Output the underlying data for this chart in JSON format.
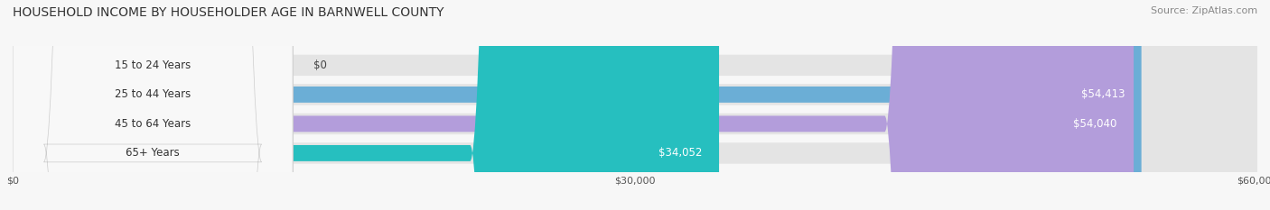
{
  "title": "HOUSEHOLD INCOME BY HOUSEHOLDER AGE IN BARNWELL COUNTY",
  "source": "Source: ZipAtlas.com",
  "categories": [
    "15 to 24 Years",
    "25 to 44 Years",
    "45 to 64 Years",
    "65+ Years"
  ],
  "values": [
    0,
    54413,
    54040,
    34052
  ],
  "bar_colors": [
    "#f4a0a0",
    "#6baed6",
    "#b39ddb",
    "#26bfbf"
  ],
  "bg_color": "#f0f0f0",
  "fig_bg_color": "#f7f7f7",
  "xlim": [
    0,
    60000
  ],
  "xticks": [
    0,
    30000,
    60000
  ],
  "xtick_labels": [
    "$0",
    "$30,000",
    "$60,000"
  ],
  "title_fontsize": 10,
  "source_fontsize": 8,
  "bar_label_fontsize": 8.5,
  "value_label_fontsize": 8.5,
  "figsize": [
    14.06,
    2.33
  ],
  "dpi": 100
}
